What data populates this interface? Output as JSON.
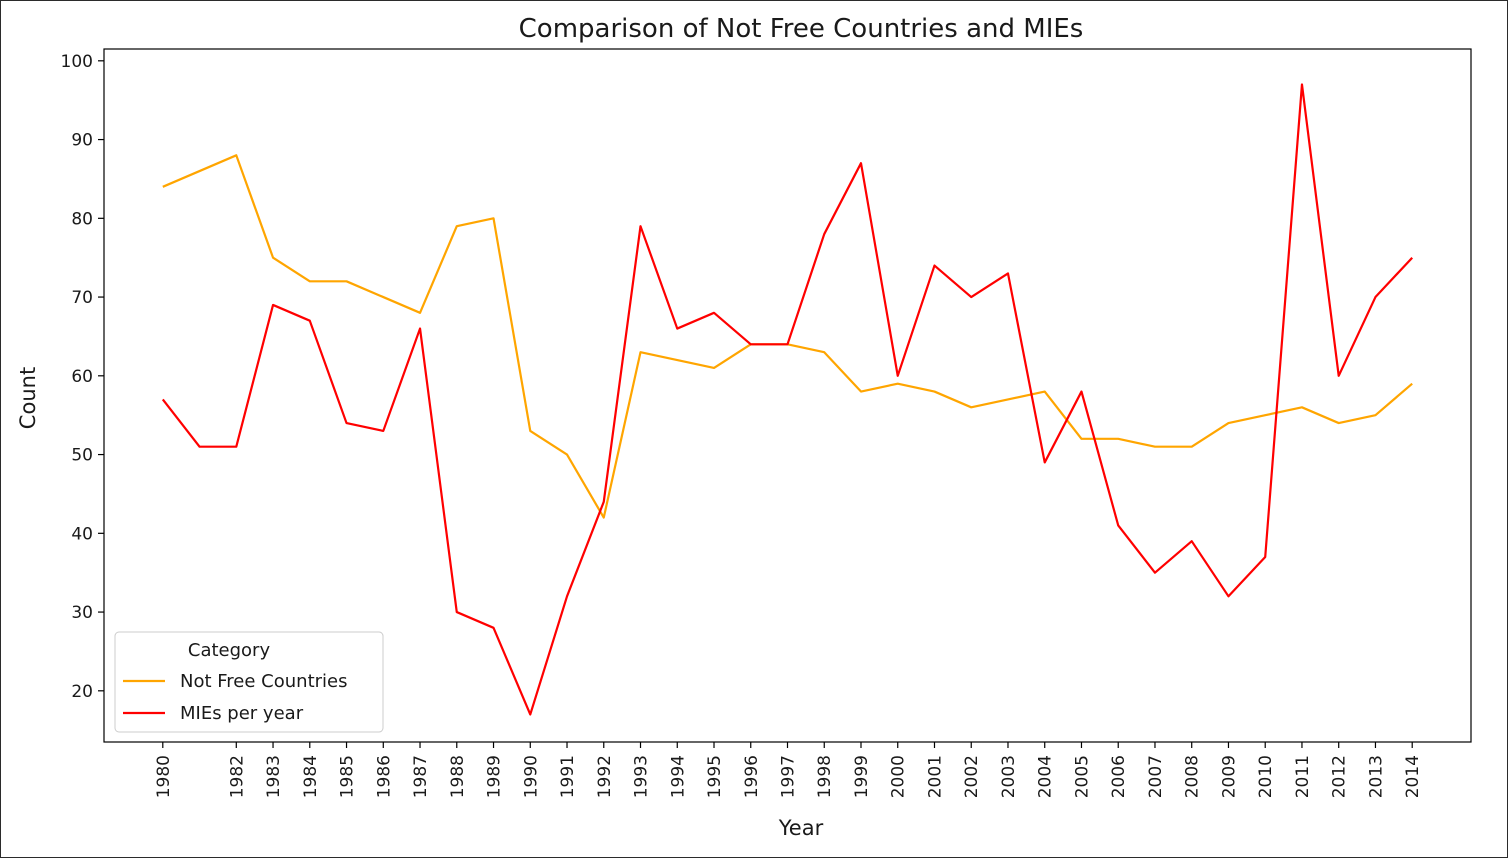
{
  "chart_data": {
    "type": "line",
    "title": "Comparison of Not Free Countries and MIEs",
    "xlabel": "Year",
    "ylabel": "Count",
    "x": [
      1980,
      1981,
      1982,
      1983,
      1984,
      1985,
      1986,
      1987,
      1988,
      1989,
      1990,
      1991,
      1992,
      1993,
      1994,
      1995,
      1996,
      1997,
      1998,
      1999,
      2000,
      2001,
      2002,
      2003,
      2004,
      2005,
      2006,
      2007,
      2008,
      2009,
      2010,
      2011,
      2012,
      2013,
      2014
    ],
    "x_tick_labels": [
      "1980",
      "1982",
      "1983",
      "1984",
      "1985",
      "1986",
      "1987",
      "1988",
      "1989",
      "1990",
      "1991",
      "1992",
      "1993",
      "1994",
      "1995",
      "1996",
      "1997",
      "1998",
      "1999",
      "2000",
      "2001",
      "2002",
      "2003",
      "2004",
      "2005",
      "2006",
      "2007",
      "2008",
      "2009",
      "2010",
      "2011",
      "2012",
      "2013",
      "2014"
    ],
    "y_ticks": [
      20,
      30,
      40,
      50,
      60,
      70,
      80,
      90,
      100
    ],
    "xlim": [
      1978.4,
      2015.6
    ],
    "ylim": [
      13.5,
      101.5
    ],
    "grid": false,
    "legend": {
      "title": "Category",
      "position": "lower-left"
    },
    "series": [
      {
        "name": "Not Free Countries",
        "color": "#ffa500",
        "values": [
          84,
          86,
          88,
          75,
          72,
          72,
          70,
          68,
          79,
          80,
          53,
          50,
          42,
          63,
          62,
          61,
          64,
          64,
          63,
          58,
          59,
          58,
          56,
          57,
          58,
          52,
          52,
          51,
          51,
          54,
          55,
          56,
          54,
          55,
          59
        ]
      },
      {
        "name": "MIEs per year",
        "color": "#ff0000",
        "values": [
          57,
          51,
          51,
          69,
          67,
          54,
          53,
          66,
          30,
          28,
          17,
          32,
          44,
          79,
          66,
          68,
          64,
          64,
          78,
          87,
          60,
          74,
          70,
          73,
          49,
          58,
          41,
          35,
          39,
          32,
          37,
          97,
          60,
          70,
          75
        ]
      }
    ]
  }
}
